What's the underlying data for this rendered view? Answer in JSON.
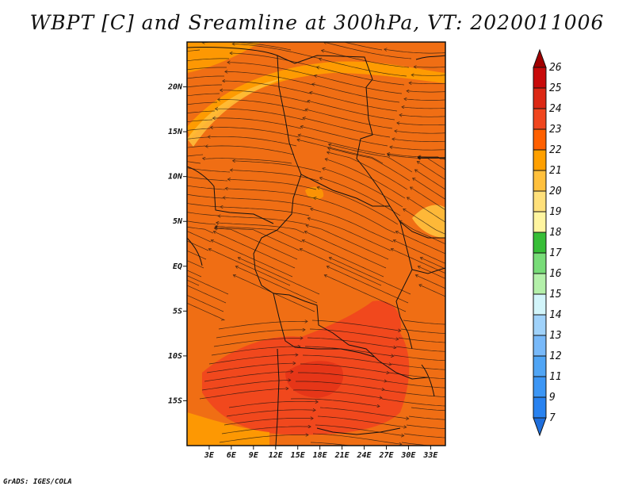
{
  "title": "WBPT [C] and Sreamline at 300hPa, VT: 2020011006",
  "credit": "GrADS: IGES/COLA",
  "map": {
    "lon_range": [
      0,
      35
    ],
    "lat_range": [
      -20,
      25
    ],
    "lat_ticks": [
      {
        "value": 20,
        "label": "20N"
      },
      {
        "value": 15,
        "label": "15N"
      },
      {
        "value": 10,
        "label": "10N"
      },
      {
        "value": 5,
        "label": "5N"
      },
      {
        "value": 0,
        "label": "EQ"
      },
      {
        "value": -5,
        "label": "5S"
      },
      {
        "value": -10,
        "label": "10S"
      },
      {
        "value": -15,
        "label": "15S"
      }
    ],
    "lon_ticks": [
      {
        "value": 3,
        "label": "3E"
      },
      {
        "value": 6,
        "label": "6E"
      },
      {
        "value": 9,
        "label": "9E"
      },
      {
        "value": 12,
        "label": "12E"
      },
      {
        "value": 15,
        "label": "15E"
      },
      {
        "value": 18,
        "label": "18E"
      },
      {
        "value": 21,
        "label": "21E"
      },
      {
        "value": 24,
        "label": "24E"
      },
      {
        "value": 27,
        "label": "27E"
      },
      {
        "value": 30,
        "label": "30E"
      },
      {
        "value": 33,
        "label": "33E"
      }
    ],
    "background_color": "#f06e14"
  },
  "colorbar": {
    "levels": [
      "7",
      "9",
      "11",
      "12",
      "13",
      "14",
      "15",
      "16",
      "17",
      "18",
      "19",
      "20",
      "21",
      "22",
      "23",
      "24",
      "25",
      "26"
    ],
    "colors": [
      "#1e6edc",
      "#2882f0",
      "#3c96f5",
      "#50a5f5",
      "#78b9f9",
      "#a0d2fa",
      "#d2f5fa",
      "#b4f0aa",
      "#78dc78",
      "#37be37",
      "#fff5a0",
      "#ffe07a",
      "#ffc03c",
      "#ffa000",
      "#ff6000",
      "#f0461e",
      "#dc2814",
      "#c80a0a",
      "#a00000"
    ]
  }
}
